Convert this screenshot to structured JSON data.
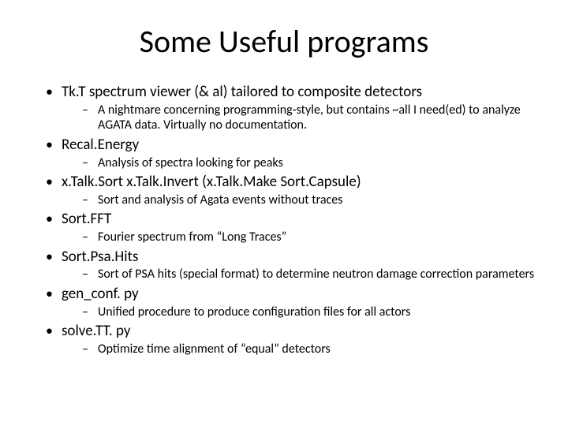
{
  "title": "Some Useful programs",
  "items": [
    {
      "label": "Tk.T spectrum viewer (& al) tailored to composite detectors",
      "sub": [
        "A nightmare concerning  programming-style, but contains ~all I need(ed) to analyze AGATA data. Virtually no documentation."
      ]
    },
    {
      "label": "Recal.Energy",
      "sub": [
        "Analysis of spectra looking for peaks"
      ]
    },
    {
      "label": "x.Talk.Sort x.Talk.Invert (x.Talk.Make Sort.Capsule)",
      "sub": [
        "Sort and analysis of Agata events without traces"
      ]
    },
    {
      "label": "Sort.FFT",
      "sub": [
        "Fourier spectrum  from “Long Traces”"
      ]
    },
    {
      "label": "Sort.Psa.Hits",
      "sub": [
        "Sort of PSA hits (special format) to determine neutron damage correction parameters"
      ]
    },
    {
      "label": "gen_conf. py",
      "sub": [
        "Unified procedure to produce configuration files for all actors"
      ]
    },
    {
      "label": "solve.TT. py",
      "sub": [
        "Optimize time alignment of “equal” detectors"
      ]
    }
  ],
  "colors": {
    "background": "#ffffff",
    "text": "#000000"
  },
  "typography": {
    "title_fontsize_pt": 40,
    "level1_fontsize_pt": 19,
    "level2_fontsize_pt": 16,
    "font_family": "Calibri"
  }
}
